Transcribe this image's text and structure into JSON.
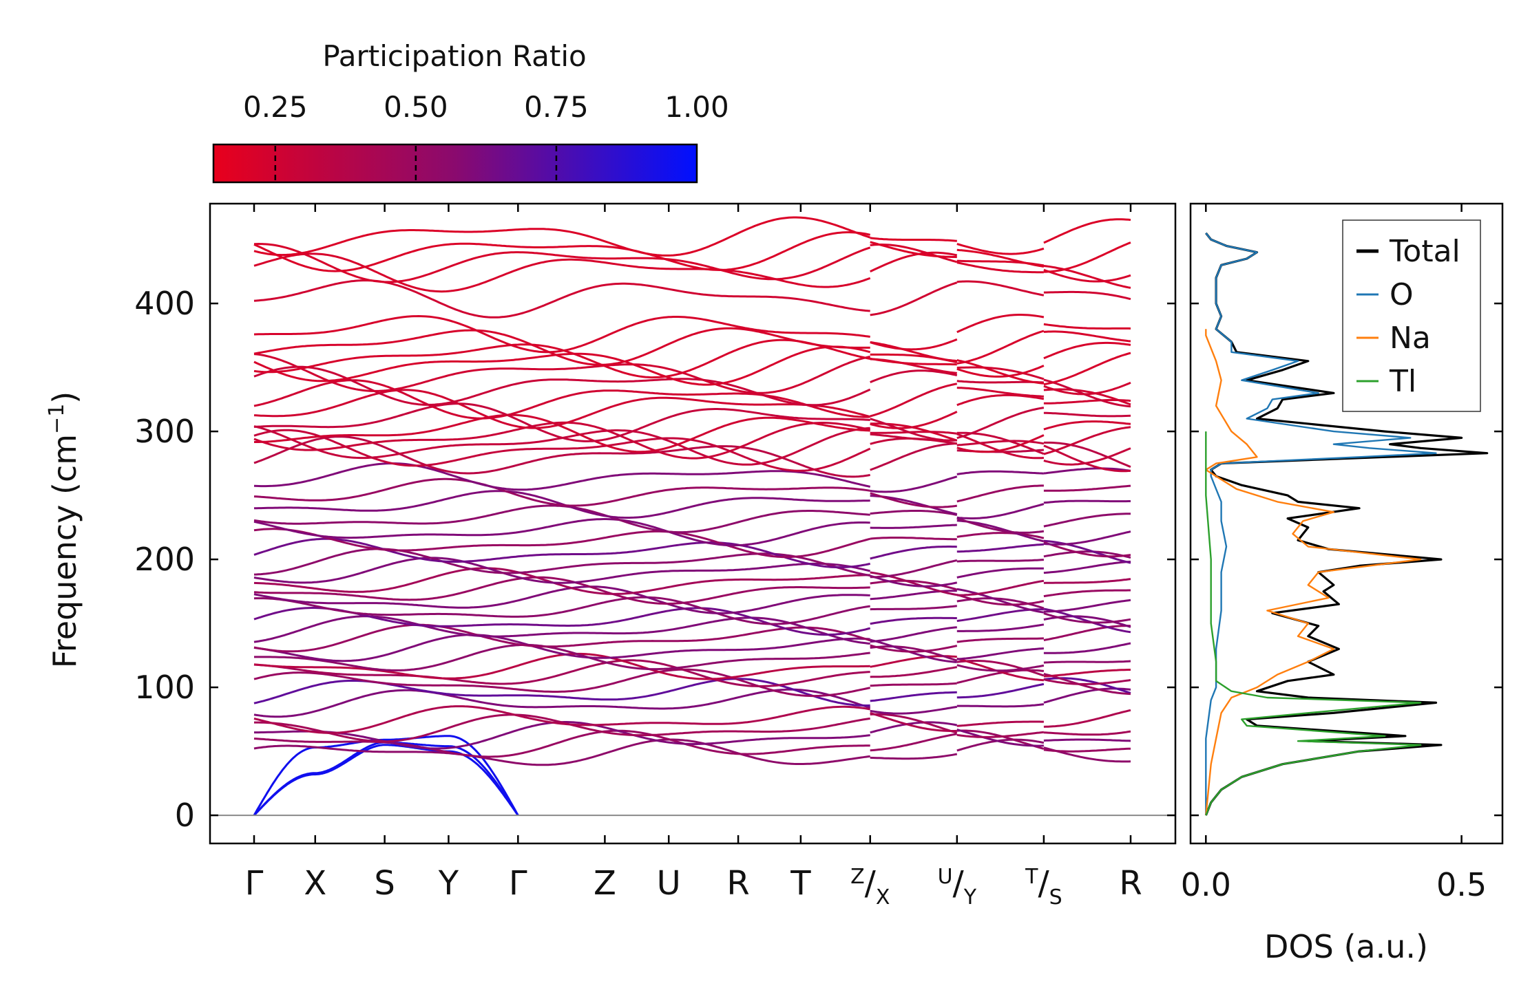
{
  "colorbar": {
    "title": "Participation Ratio",
    "ticks": [
      "0.25",
      "0.50",
      "0.75",
      "1.00"
    ],
    "tick_values": [
      0.25,
      0.5,
      0.75,
      1.0
    ],
    "range": [
      0.14,
      1.0
    ],
    "color_low": "#e8001c",
    "color_mid": "#8a0a6e",
    "color_high": "#0010ff"
  },
  "chart_data": [
    {
      "type": "line",
      "name": "phonon-dispersion",
      "ylabel_main": "Frequency (cm",
      "ylabel_exp": "−1",
      "ylabel_close": ")",
      "ylim": [
        -22,
        478
      ],
      "yticks": [
        0,
        100,
        200,
        300,
        400
      ],
      "ytick_labels": [
        "0",
        "100",
        "200",
        "300",
        "400"
      ],
      "segments": [
        {
          "points": [
            "Γ",
            "X",
            "S",
            "Y",
            "Γ",
            "Z",
            "U",
            "R",
            "T",
            "Z"
          ],
          "x": [
            0,
            0.88,
            1.88,
            2.8,
            3.8,
            5.05,
            5.97,
            6.97,
            7.87,
            8.87
          ]
        },
        {
          "points": [
            "X",
            "U"
          ],
          "x": [
            8.87,
            10.12
          ]
        },
        {
          "points": [
            "Y",
            "T"
          ],
          "x": [
            10.12,
            11.37
          ]
        },
        {
          "points": [
            "S",
            "R"
          ],
          "x": [
            11.37,
            12.62
          ]
        }
      ],
      "xtick_labels": [
        {
          "text": "Γ",
          "x": 0
        },
        {
          "text": "X",
          "x": 0.88
        },
        {
          "text": "S",
          "x": 1.88
        },
        {
          "text": "Y",
          "x": 2.8
        },
        {
          "text": "Γ",
          "x": 3.8
        },
        {
          "text": "Z",
          "x": 5.05
        },
        {
          "text": "U",
          "x": 5.97
        },
        {
          "text": "R",
          "x": 6.97
        },
        {
          "text": "T",
          "x": 7.87
        },
        {
          "sup": "Z",
          "sep": "/",
          "sub": "X",
          "x": 8.87
        },
        {
          "sup": "U",
          "sep": "/",
          "sub": "Y",
          "x": 10.12
        },
        {
          "sup": "T",
          "sep": "/",
          "sub": "S",
          "x": 11.37
        },
        {
          "text": "R",
          "x": 12.62
        }
      ],
      "acoustic_bands": [
        {
          "x": [
            0,
            0.88,
            1.88,
            2.8,
            3.8
          ],
          "y": [
            0,
            32,
            55,
            50,
            0
          ]
        },
        {
          "x": [
            0,
            0.88,
            1.88,
            2.8,
            3.8
          ],
          "y": [
            0,
            33,
            57,
            54,
            0
          ]
        },
        {
          "x": [
            0,
            0.88,
            1.88,
            2.8,
            3.8
          ],
          "y": [
            0,
            53,
            59,
            62,
            0
          ]
        }
      ],
      "optical_band_levels": [
        {
          "y": 48,
          "pr": 0.55
        },
        {
          "y": 55,
          "pr": 0.5
        },
        {
          "y": 62,
          "pr": 0.6
        },
        {
          "y": 68,
          "pr": 0.45
        },
        {
          "y": 75,
          "pr": 0.4
        },
        {
          "y": 88,
          "pr": 0.6
        },
        {
          "y": 96,
          "pr": 0.7
        },
        {
          "y": 103,
          "pr": 0.5
        },
        {
          "y": 110,
          "pr": 0.45
        },
        {
          "y": 115,
          "pr": 0.35
        },
        {
          "y": 122,
          "pr": 0.55
        },
        {
          "y": 130,
          "pr": 0.6
        },
        {
          "y": 138,
          "pr": 0.5
        },
        {
          "y": 145,
          "pr": 0.6
        },
        {
          "y": 152,
          "pr": 0.65
        },
        {
          "y": 160,
          "pr": 0.55
        },
        {
          "y": 168,
          "pr": 0.6
        },
        {
          "y": 175,
          "pr": 0.5
        },
        {
          "y": 182,
          "pr": 0.45
        },
        {
          "y": 190,
          "pr": 0.6
        },
        {
          "y": 197,
          "pr": 0.55
        },
        {
          "y": 205,
          "pr": 0.65
        },
        {
          "y": 213,
          "pr": 0.5
        },
        {
          "y": 222,
          "pr": 0.6
        },
        {
          "y": 232,
          "pr": 0.55
        },
        {
          "y": 243,
          "pr": 0.6
        },
        {
          "y": 252,
          "pr": 0.5
        },
        {
          "y": 264,
          "pr": 0.6
        },
        {
          "y": 280,
          "pr": 0.35
        },
        {
          "y": 285,
          "pr": 0.3
        },
        {
          "y": 290,
          "pr": 0.3
        },
        {
          "y": 295,
          "pr": 0.28
        },
        {
          "y": 300,
          "pr": 0.25
        },
        {
          "y": 308,
          "pr": 0.3
        },
        {
          "y": 318,
          "pr": 0.25
        },
        {
          "y": 325,
          "pr": 0.25
        },
        {
          "y": 335,
          "pr": 0.28
        },
        {
          "y": 345,
          "pr": 0.25
        },
        {
          "y": 352,
          "pr": 0.22
        },
        {
          "y": 358,
          "pr": 0.22
        },
        {
          "y": 368,
          "pr": 0.22
        },
        {
          "y": 378,
          "pr": 0.22
        },
        {
          "y": 405,
          "pr": 0.25
        },
        {
          "y": 425,
          "pr": 0.22
        },
        {
          "y": 432,
          "pr": 0.22
        },
        {
          "y": 440,
          "pr": 0.2
        },
        {
          "y": 452,
          "pr": 0.2
        }
      ]
    },
    {
      "type": "line",
      "name": "dos",
      "xlabel": "DOS (a.u.)",
      "xlim": [
        -0.03,
        0.58
      ],
      "xticks": [
        0.0,
        0.5
      ],
      "xtick_labels": [
        "0.0",
        "0.5"
      ],
      "ylim": [
        -22,
        478
      ],
      "legend_position": "top-right",
      "series": [
        {
          "name": "Total",
          "color": "#000000",
          "y": [
            0,
            10,
            20,
            30,
            40,
            50,
            55,
            58,
            62,
            70,
            75,
            80,
            88,
            92,
            97,
            105,
            110,
            120,
            130,
            140,
            148,
            158,
            165,
            175,
            180,
            190,
            195,
            200,
            208,
            215,
            225,
            232,
            240,
            245,
            250,
            258,
            265,
            270,
            275,
            280,
            283,
            287,
            290,
            295,
            300,
            310,
            318,
            325,
            330,
            340,
            348,
            355,
            362,
            370,
            380,
            390,
            400,
            410,
            420,
            430,
            435,
            440,
            445,
            450,
            455
          ],
          "values": [
            0.0,
            0.01,
            0.03,
            0.07,
            0.15,
            0.3,
            0.46,
            0.2,
            0.39,
            0.1,
            0.08,
            0.25,
            0.45,
            0.2,
            0.1,
            0.16,
            0.25,
            0.2,
            0.26,
            0.2,
            0.22,
            0.13,
            0.26,
            0.23,
            0.25,
            0.22,
            0.3,
            0.46,
            0.24,
            0.18,
            0.2,
            0.16,
            0.3,
            0.18,
            0.16,
            0.07,
            0.02,
            0.01,
            0.03,
            0.35,
            0.55,
            0.42,
            0.36,
            0.5,
            0.35,
            0.1,
            0.14,
            0.15,
            0.25,
            0.08,
            0.15,
            0.2,
            0.06,
            0.05,
            0.02,
            0.03,
            0.02,
            0.02,
            0.02,
            0.03,
            0.08,
            0.1,
            0.04,
            0.01,
            0.0
          ]
        },
        {
          "name": "O",
          "color": "#1f77b4",
          "y": [
            0,
            40,
            60,
            90,
            100,
            130,
            160,
            190,
            210,
            230,
            245,
            255,
            265,
            270,
            275,
            280,
            283,
            287,
            290,
            295,
            300,
            310,
            318,
            325,
            330,
            340,
            348,
            355,
            362,
            370,
            380,
            390,
            400,
            410,
            420,
            430,
            435,
            440,
            445,
            450,
            455
          ],
          "values": [
            0.0,
            0.0,
            0.0,
            0.01,
            0.02,
            0.02,
            0.03,
            0.03,
            0.04,
            0.03,
            0.03,
            0.02,
            0.01,
            0.01,
            0.03,
            0.3,
            0.45,
            0.32,
            0.25,
            0.4,
            0.25,
            0.08,
            0.12,
            0.13,
            0.22,
            0.07,
            0.13,
            0.18,
            0.05,
            0.05,
            0.02,
            0.03,
            0.02,
            0.02,
            0.02,
            0.03,
            0.08,
            0.1,
            0.04,
            0.01,
            0.0
          ]
        },
        {
          "name": "Na",
          "color": "#ff7f0e",
          "y": [
            0,
            40,
            60,
            80,
            92,
            100,
            110,
            120,
            130,
            140,
            150,
            160,
            170,
            180,
            190,
            200,
            210,
            220,
            230,
            237,
            245,
            255,
            265,
            270,
            275,
            280,
            290,
            300,
            320,
            340,
            355,
            365,
            375,
            380
          ],
          "values": [
            0.0,
            0.01,
            0.02,
            0.03,
            0.05,
            0.1,
            0.14,
            0.2,
            0.25,
            0.18,
            0.2,
            0.12,
            0.24,
            0.2,
            0.22,
            0.42,
            0.2,
            0.17,
            0.19,
            0.25,
            0.14,
            0.06,
            0.02,
            0.0,
            0.02,
            0.1,
            0.08,
            0.05,
            0.02,
            0.03,
            0.02,
            0.01,
            0.0,
            0.0
          ]
        },
        {
          "name": "Tl",
          "color": "#2ca02c",
          "y": [
            0,
            10,
            20,
            30,
            40,
            50,
            55,
            58,
            62,
            70,
            75,
            80,
            88,
            92,
            97,
            105,
            120,
            150,
            200,
            250,
            270,
            300
          ],
          "values": [
            0.0,
            0.01,
            0.03,
            0.07,
            0.15,
            0.3,
            0.42,
            0.18,
            0.35,
            0.08,
            0.07,
            0.2,
            0.42,
            0.12,
            0.05,
            0.02,
            0.02,
            0.01,
            0.01,
            0.0,
            0.0,
            0.0
          ]
        }
      ]
    }
  ]
}
